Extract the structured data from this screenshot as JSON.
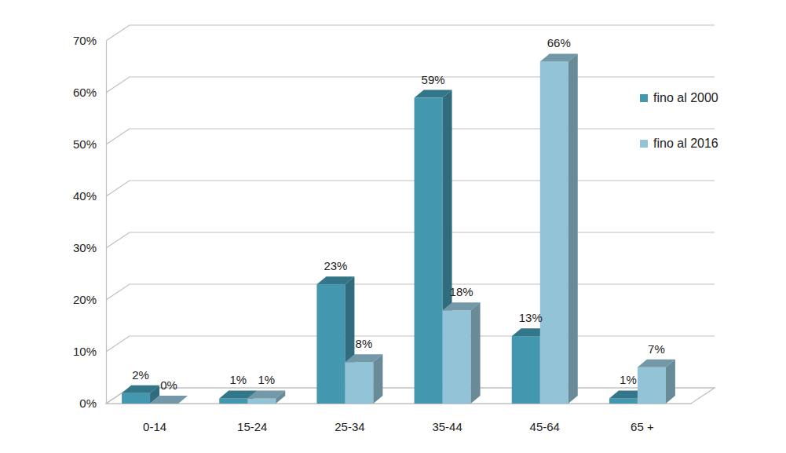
{
  "chart_data": {
    "type": "bar",
    "categories": [
      "0-14",
      "15-24",
      "25-34",
      "35-44",
      "45-64",
      "65 +"
    ],
    "series": [
      {
        "name": "fino al 2000",
        "color": "#4398b0",
        "values": [
          2,
          1,
          23,
          59,
          13,
          1
        ],
        "value_labels": [
          "2%",
          "1%",
          "23%",
          "59%",
          "13%",
          "1%"
        ]
      },
      {
        "name": "fino al 2016",
        "color": "#93c3d6",
        "values": [
          0,
          1,
          8,
          18,
          66,
          7
        ],
        "value_labels": [
          "0%",
          "1%",
          "8%",
          "18%",
          "66%",
          "7%"
        ]
      }
    ],
    "ylim": [
      0,
      70
    ],
    "yticks": [
      {
        "value": 0,
        "label": "0%"
      },
      {
        "value": 10,
        "label": "10%"
      },
      {
        "value": 20,
        "label": "20%"
      },
      {
        "value": 30,
        "label": "30%"
      },
      {
        "value": 40,
        "label": "40%"
      },
      {
        "value": 50,
        "label": "50%"
      },
      {
        "value": 60,
        "label": "60%"
      },
      {
        "value": 70,
        "label": "70%"
      }
    ],
    "grid": true,
    "legend": "right",
    "data_labels": true
  }
}
